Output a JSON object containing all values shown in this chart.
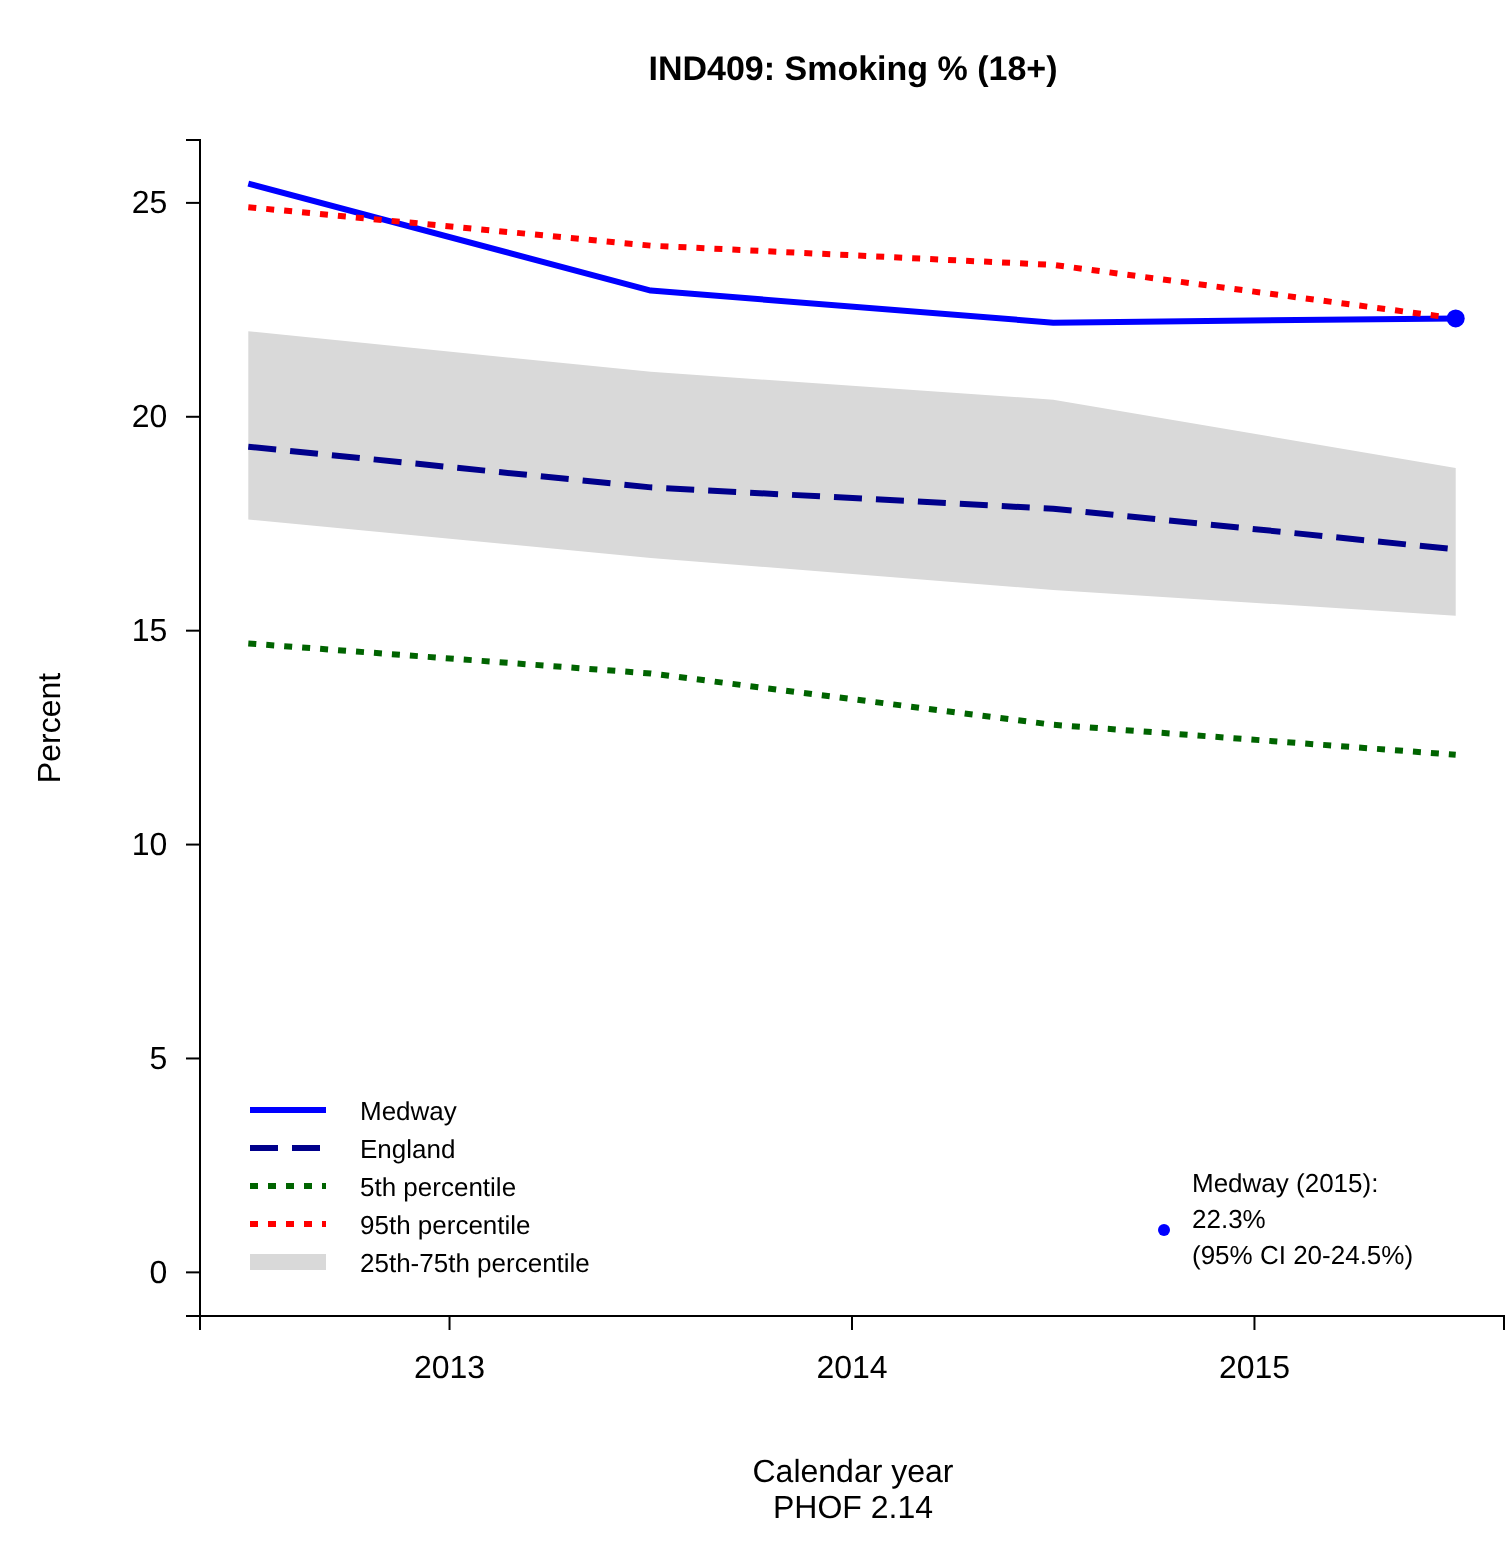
{
  "chart_data": {
    "type": "line",
    "title": "IND409: Smoking % (18+)",
    "xlabel": "Calendar year",
    "ylabel": "Percent",
    "x": [
      2012.5,
      2013.5,
      2014.5,
      2015.5
    ],
    "xlim": [
      2012.38,
      2015.62
    ],
    "xticks": [
      2013,
      2014,
      2015
    ],
    "ylim": [
      -1.02,
      26.47
    ],
    "yticks": [
      0,
      5,
      10,
      15,
      20,
      25
    ],
    "series": [
      {
        "name": "25th-75th percentile",
        "type": "area",
        "color": "#d9d9d9",
        "values": [
          null,
          null,
          null,
          null
        ],
        "upper": [
          22.0,
          21.05,
          20.4,
          18.8
        ],
        "lower": [
          17.6,
          16.7,
          15.95,
          15.35
        ]
      },
      {
        "name": "Medway",
        "color": "#0000ff",
        "line_style": "solid",
        "values": [
          25.45,
          22.95,
          22.2,
          22.3
        ]
      },
      {
        "name": "England",
        "color": "#00008b",
        "line_style": "dashed",
        "values": [
          19.3,
          18.35,
          17.85,
          16.9
        ]
      },
      {
        "name": "5th percentile",
        "color": "#006400",
        "line_style": "dotted",
        "values": [
          14.7,
          14.0,
          12.8,
          12.1
        ]
      },
      {
        "name": "95th percentile",
        "color": "#ff0000",
        "line_style": "dotted",
        "values": [
          24.9,
          24.0,
          23.55,
          22.3
        ]
      },
      {
        "type": "scatter",
        "color": "#0000ff",
        "marker": "circle",
        "x": [
          2015.5
        ],
        "values": [
          22.3
        ]
      }
    ],
    "legend": "bottom left",
    "grid": false,
    "annotations": [
      "Medway (2015):\n22.3%\n(95% CI 20-24.5%)",
      "PHOF 2.14"
    ]
  }
}
